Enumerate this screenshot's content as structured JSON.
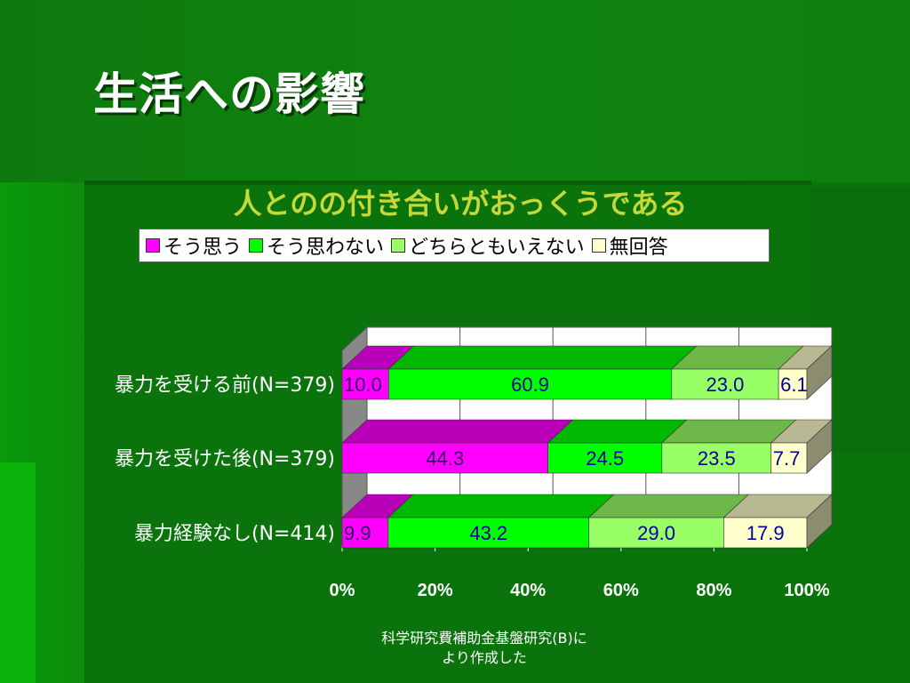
{
  "slide": {
    "title": "生活への影響",
    "footer_line1": "科学研究費補助金基盤研究(B)に",
    "footer_line2": "より作成した"
  },
  "chart_data": {
    "type": "bar",
    "orientation": "horizontal",
    "stacked": "percent",
    "three_d": true,
    "title": "人とのの付き合いがおっくうである",
    "categories": [
      "暴力を受ける前(N=379)",
      "暴力を受けた後(N=379)",
      "暴力経験なし(N=414)"
    ],
    "series": [
      {
        "name": "そう思う",
        "color": "#ff00ff",
        "values": [
          10.0,
          44.3,
          9.9
        ]
      },
      {
        "name": "そう思わない",
        "color": "#00ff00",
        "values": [
          60.9,
          24.5,
          43.2
        ]
      },
      {
        "name": "どちらともいえない",
        "color": "#99ff66",
        "values": [
          23.0,
          23.5,
          29.0
        ]
      },
      {
        "name": "無回答",
        "color": "#ffffcc",
        "values": [
          6.1,
          7.7,
          17.9
        ]
      }
    ],
    "xlim": [
      0,
      100
    ],
    "x_ticks": [
      "0%",
      "20%",
      "40%",
      "60%",
      "80%",
      "100%"
    ],
    "grid": true,
    "legend_position": "top",
    "colors": {
      "label_text": "#000099",
      "first_label_text": "#330066",
      "axis_label_text": "#ffffff",
      "wall": "#ffffff",
      "side_wall": "#888888"
    }
  }
}
